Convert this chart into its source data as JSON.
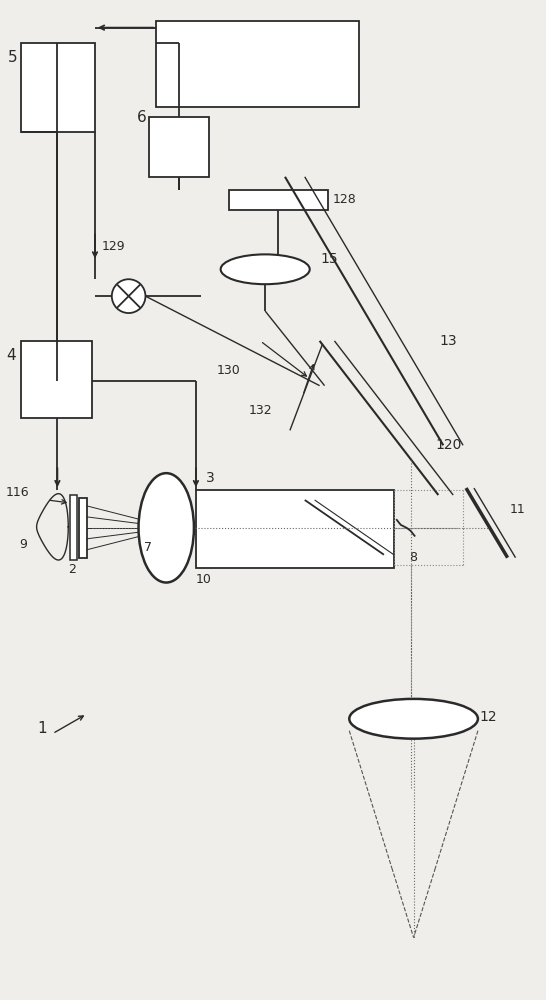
{
  "bg_color": "#f0eeeb",
  "line_color": "#2a2a2a",
  "lw": 1.3,
  "fig_w": 5.46,
  "fig_h": 10.0,
  "dpi": 100
}
